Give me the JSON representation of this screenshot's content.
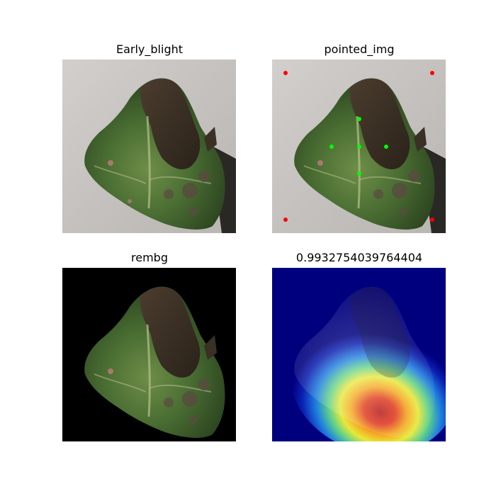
{
  "panels": [
    {
      "title": "Early_blight"
    },
    {
      "title": "pointed_img"
    },
    {
      "title": "rembg"
    },
    {
      "title": "0.9932754039764404"
    }
  ],
  "colors": {
    "leaf_dark_green": "#2f4a22",
    "leaf_mid_green": "#4f7a3a",
    "leaf_light_green": "#9aae6a",
    "blight_brown": "#3e3226",
    "background_gray": "#c9c6c3",
    "rembg_background": "#000000",
    "foreground_point": "#00ff00",
    "corner_point": "#ff0000",
    "heatmap_cold": "#00007f",
    "heatmap_hot": "#d62020"
  },
  "icons": [
    "foreground-point-marker",
    "corner-point-marker"
  ]
}
